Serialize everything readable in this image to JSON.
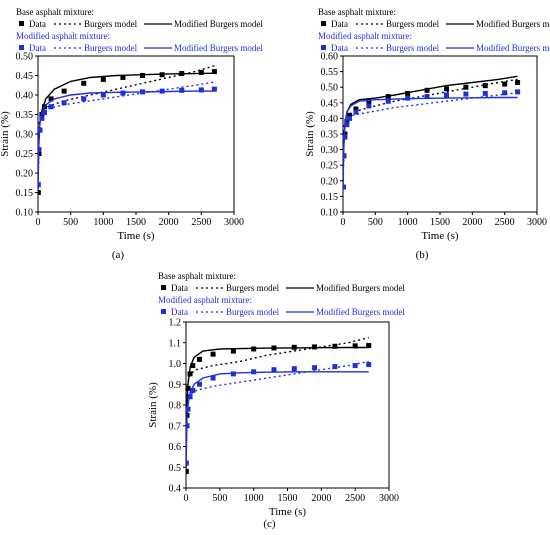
{
  "legend": {
    "base_title": "Base asphalt mixture:",
    "modified_title": "Modified asphalt mixture:",
    "data_label": "Data",
    "burgers_label": "Burgers model",
    "modified_burgers_label": "Modified Burgers model"
  },
  "colors": {
    "base": "#000000",
    "modified": "#1f2fdc"
  },
  "chart_data": [
    {
      "type": "scatter",
      "panel_label": "(a)",
      "xlabel": "Time (s)",
      "ylabel": "Strain (%)",
      "xlim": [
        0,
        3000
      ],
      "ylim": [
        0.1,
        0.5
      ],
      "xticks": [
        0,
        500,
        1000,
        1500,
        2000,
        2500,
        3000
      ],
      "yticks": [
        0.1,
        0.15,
        0.2,
        0.25,
        0.3,
        0.35,
        0.4,
        0.45,
        0.5
      ],
      "ytick_labels": [
        "0.10",
        "0.15",
        "0.20",
        "0.25",
        "0.30",
        "0.35",
        "0.40",
        "0.45",
        "0.50"
      ],
      "grid": false,
      "series": [
        {
          "name": "Data",
          "group": "base",
          "style": "squares",
          "x": [
            5,
            15,
            30,
            60,
            100,
            200,
            400,
            700,
            1000,
            1300,
            1600,
            1900,
            2200,
            2500,
            2700
          ],
          "y": [
            0.15,
            0.25,
            0.31,
            0.35,
            0.37,
            0.39,
            0.41,
            0.43,
            0.44,
            0.445,
            0.45,
            0.452,
            0.455,
            0.458,
            0.46
          ]
        },
        {
          "name": "Burgers model",
          "group": "base",
          "style": "dotted",
          "x": [
            0,
            20,
            60,
            150,
            400,
            800,
            1200,
            1600,
            2000,
            2400,
            2700
          ],
          "y": [
            0.16,
            0.33,
            0.36,
            0.37,
            0.385,
            0.4,
            0.415,
            0.43,
            0.445,
            0.46,
            0.475
          ]
        },
        {
          "name": "Modified Burgers model",
          "group": "base",
          "style": "solid",
          "x": [
            0,
            10,
            30,
            60,
            120,
            250,
            500,
            800,
            1200,
            1600,
            2000,
            2400,
            2700
          ],
          "y": [
            0.16,
            0.27,
            0.33,
            0.36,
            0.39,
            0.415,
            0.435,
            0.445,
            0.45,
            0.452,
            0.454,
            0.455,
            0.456
          ]
        },
        {
          "name": "Data",
          "group": "modified",
          "style": "squares",
          "x": [
            5,
            15,
            30,
            60,
            100,
            200,
            400,
            700,
            1000,
            1300,
            1600,
            1900,
            2200,
            2500,
            2700
          ],
          "y": [
            0.17,
            0.26,
            0.31,
            0.34,
            0.355,
            0.37,
            0.38,
            0.39,
            0.4,
            0.405,
            0.408,
            0.41,
            0.412,
            0.413,
            0.415
          ]
        },
        {
          "name": "Burgers model",
          "group": "modified",
          "style": "dotted",
          "x": [
            0,
            20,
            60,
            150,
            400,
            800,
            1200,
            1600,
            2000,
            2400,
            2700
          ],
          "y": [
            0.17,
            0.33,
            0.355,
            0.365,
            0.375,
            0.385,
            0.395,
            0.405,
            0.415,
            0.425,
            0.433
          ]
        },
        {
          "name": "Modified Burgers model",
          "group": "modified",
          "style": "solid",
          "x": [
            0,
            10,
            30,
            60,
            120,
            250,
            500,
            800,
            1200,
            1600,
            2000,
            2400,
            2700
          ],
          "y": [
            0.17,
            0.28,
            0.33,
            0.355,
            0.375,
            0.39,
            0.4,
            0.405,
            0.407,
            0.408,
            0.409,
            0.41,
            0.41
          ]
        }
      ]
    },
    {
      "type": "scatter",
      "panel_label": "(b)",
      "xlabel": "Time (s)",
      "ylabel": "Strain (%)",
      "xlim": [
        0,
        3000
      ],
      "ylim": [
        0.1,
        0.6
      ],
      "xticks": [
        0,
        500,
        1000,
        1500,
        2000,
        2500,
        3000
      ],
      "yticks": [
        0.1,
        0.15,
        0.2,
        0.25,
        0.3,
        0.35,
        0.4,
        0.45,
        0.5,
        0.55,
        0.6
      ],
      "ytick_labels": [
        "0.10",
        "0.15",
        "0.20",
        "0.25",
        "0.30",
        "0.35",
        "0.40",
        "0.45",
        "0.50",
        "0.55",
        "0.60"
      ],
      "grid": false,
      "series": [
        {
          "name": "Data",
          "group": "base",
          "style": "squares",
          "x": [
            5,
            15,
            30,
            60,
            100,
            200,
            400,
            700,
            1000,
            1300,
            1600,
            1900,
            2200,
            2500,
            2700
          ],
          "y": [
            0.18,
            0.28,
            0.35,
            0.39,
            0.41,
            0.43,
            0.455,
            0.47,
            0.48,
            0.49,
            0.495,
            0.5,
            0.505,
            0.51,
            0.515
          ]
        },
        {
          "name": "Burgers model",
          "group": "base",
          "style": "dotted",
          "x": [
            0,
            20,
            60,
            150,
            400,
            800,
            1200,
            1600,
            2000,
            2400,
            2700
          ],
          "y": [
            0.18,
            0.38,
            0.41,
            0.42,
            0.435,
            0.455,
            0.47,
            0.485,
            0.5,
            0.515,
            0.525
          ]
        },
        {
          "name": "Modified Burgers model",
          "group": "base",
          "style": "solid",
          "x": [
            0,
            10,
            30,
            60,
            120,
            250,
            500,
            800,
            1200,
            1600,
            2000,
            2400,
            2700
          ],
          "y": [
            0.18,
            0.3,
            0.38,
            0.42,
            0.445,
            0.46,
            0.465,
            0.475,
            0.49,
            0.505,
            0.515,
            0.525,
            0.535
          ]
        },
        {
          "name": "Data",
          "group": "modified",
          "style": "squares",
          "x": [
            5,
            15,
            30,
            60,
            100,
            200,
            400,
            700,
            1000,
            1300,
            1600,
            1900,
            2200,
            2500,
            2700
          ],
          "y": [
            0.18,
            0.28,
            0.34,
            0.38,
            0.4,
            0.42,
            0.44,
            0.455,
            0.465,
            0.47,
            0.475,
            0.478,
            0.48,
            0.482,
            0.485
          ]
        },
        {
          "name": "Burgers model",
          "group": "modified",
          "style": "dotted",
          "x": [
            0,
            20,
            60,
            150,
            400,
            800,
            1200,
            1600,
            2000,
            2400,
            2700
          ],
          "y": [
            0.18,
            0.37,
            0.4,
            0.41,
            0.42,
            0.435,
            0.445,
            0.455,
            0.465,
            0.475,
            0.482
          ]
        },
        {
          "name": "Modified Burgers model",
          "group": "modified",
          "style": "solid",
          "x": [
            0,
            10,
            30,
            60,
            120,
            250,
            500,
            800,
            1200,
            1600,
            2000,
            2400,
            2700
          ],
          "y": [
            0.18,
            0.3,
            0.38,
            0.42,
            0.44,
            0.455,
            0.46,
            0.462,
            0.464,
            0.465,
            0.466,
            0.467,
            0.467
          ]
        }
      ]
    },
    {
      "type": "scatter",
      "panel_label": "(c)",
      "xlabel": "Time (s)",
      "ylabel": "Strain (%)",
      "xlim": [
        0,
        3000
      ],
      "ylim": [
        0.4,
        1.2
      ],
      "xticks": [
        0,
        500,
        1000,
        1500,
        2000,
        2500,
        3000
      ],
      "yticks": [
        0.4,
        0.5,
        0.6,
        0.7,
        0.8,
        0.9,
        1.0,
        1.1,
        1.2
      ],
      "ytick_labels": [
        "0.4",
        "0.5",
        "0.6",
        "0.7",
        "0.8",
        "0.9",
        "1.0",
        "1.1",
        "1.2"
      ],
      "grid": false,
      "series": [
        {
          "name": "Data",
          "group": "base",
          "style": "squares",
          "x": [
            5,
            15,
            30,
            60,
            100,
            200,
            400,
            700,
            1000,
            1300,
            1600,
            1900,
            2200,
            2500,
            2700
          ],
          "y": [
            0.48,
            0.75,
            0.88,
            0.95,
            0.99,
            1.02,
            1.045,
            1.06,
            1.07,
            1.075,
            1.078,
            1.08,
            1.083,
            1.085,
            1.087
          ]
        },
        {
          "name": "Burgers model",
          "group": "base",
          "style": "dotted",
          "x": [
            0,
            20,
            60,
            150,
            400,
            800,
            1200,
            1600,
            2000,
            2400,
            2700
          ],
          "y": [
            0.48,
            0.9,
            0.95,
            0.97,
            0.99,
            1.01,
            1.04,
            1.06,
            1.08,
            1.1,
            1.125
          ]
        },
        {
          "name": "Modified Burgers model",
          "group": "base",
          "style": "solid",
          "x": [
            0,
            10,
            30,
            60,
            120,
            250,
            500,
            800,
            1200,
            1600,
            2000,
            2400,
            2700
          ],
          "y": [
            0.48,
            0.78,
            0.9,
            0.98,
            1.03,
            1.06,
            1.07,
            1.072,
            1.074,
            1.075,
            1.076,
            1.077,
            1.077
          ]
        },
        {
          "name": "Data",
          "group": "modified",
          "style": "squares",
          "x": [
            5,
            15,
            30,
            60,
            100,
            200,
            400,
            700,
            1000,
            1300,
            1600,
            1900,
            2200,
            2500,
            2700
          ],
          "y": [
            0.52,
            0.7,
            0.78,
            0.84,
            0.87,
            0.9,
            0.93,
            0.95,
            0.96,
            0.97,
            0.975,
            0.98,
            0.985,
            0.99,
            0.995
          ]
        },
        {
          "name": "Burgers model",
          "group": "modified",
          "style": "dotted",
          "x": [
            0,
            20,
            60,
            150,
            400,
            800,
            1200,
            1600,
            2000,
            2400,
            2700
          ],
          "y": [
            0.52,
            0.8,
            0.85,
            0.87,
            0.89,
            0.91,
            0.93,
            0.95,
            0.97,
            0.99,
            1.01
          ]
        },
        {
          "name": "Modified Burgers model",
          "group": "modified",
          "style": "solid",
          "x": [
            0,
            10,
            30,
            60,
            120,
            250,
            500,
            800,
            1200,
            1600,
            2000,
            2400,
            2700
          ],
          "y": [
            0.52,
            0.72,
            0.8,
            0.86,
            0.9,
            0.93,
            0.95,
            0.955,
            0.958,
            0.96,
            0.96,
            0.96,
            0.96
          ]
        }
      ]
    }
  ]
}
